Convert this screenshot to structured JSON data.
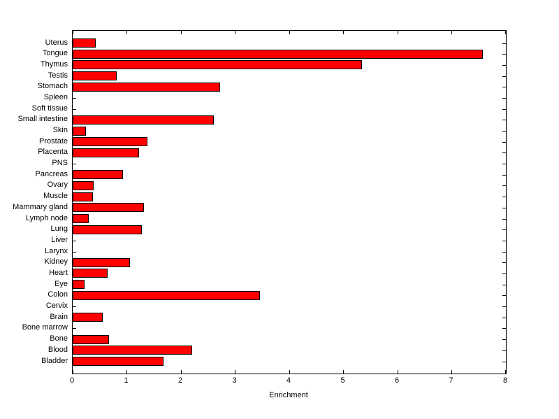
{
  "figure": {
    "background_color": "#ffffff",
    "frame_color": "#000000"
  },
  "chart_data": {
    "type": "bar",
    "orientation": "horizontal",
    "title": "",
    "xlabel": "Enrichment",
    "ylabel": "",
    "xlim": [
      0,
      8
    ],
    "x_ticks": [
      0,
      1,
      2,
      3,
      4,
      5,
      6,
      7,
      8
    ],
    "grid": false,
    "legend": null,
    "bar_color": "#ff0000",
    "bar_edge_color": "#000000",
    "categories_top_to_bottom": [
      "Uterus",
      "Tongue",
      "Thymus",
      "Testis",
      "Stomach",
      "Spleen",
      "Soft tissue",
      "Small intestine",
      "Skin",
      "Prostate",
      "Placenta",
      "PNS",
      "Pancreas",
      "Ovary",
      "Muscle",
      "Mammary gland",
      "Lymph node",
      "Lung",
      "Liver",
      "Larynx",
      "Kidney",
      "Heart",
      "Eye",
      "Colon",
      "Cervix",
      "Brain",
      "Bone marrow",
      "Bone",
      "Blood",
      "Bladder"
    ],
    "values_top_to_bottom": [
      0.42,
      7.58,
      5.34,
      0.81,
      2.72,
      0,
      0,
      2.6,
      0.24,
      1.38,
      1.23,
      0,
      0.93,
      0.39,
      0.37,
      1.32,
      0.3,
      1.28,
      0,
      0,
      1.06,
      0.64,
      0.22,
      3.46,
      0,
      0.56,
      0,
      0.67,
      2.2,
      1.68
    ]
  }
}
